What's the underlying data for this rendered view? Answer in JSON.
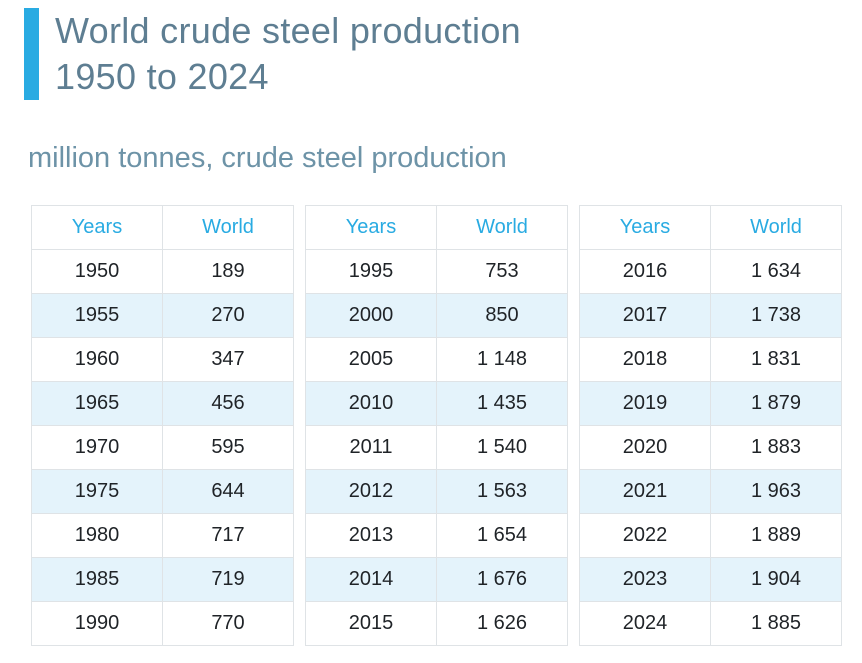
{
  "page": {
    "title_line1": "World crude steel production",
    "title_line2": "1950 to 2024",
    "subtitle": "million tonnes, crude steel production"
  },
  "colors": {
    "accent": "#29abe2",
    "title_text": "#5e7e92",
    "subtitle_text": "#6d93a7",
    "stripe": "#e4f3fb",
    "border": "#dfe3e6",
    "cell_text": "#1f2327"
  },
  "tables": [
    {
      "headers": [
        "Years",
        "World"
      ],
      "rows": [
        [
          "1950",
          "189"
        ],
        [
          "1955",
          "270"
        ],
        [
          "1960",
          "347"
        ],
        [
          "1965",
          "456"
        ],
        [
          "1970",
          "595"
        ],
        [
          "1975",
          "644"
        ],
        [
          "1980",
          "717"
        ],
        [
          "1985",
          "719"
        ],
        [
          "1990",
          "770"
        ]
      ]
    },
    {
      "headers": [
        "Years",
        "World"
      ],
      "rows": [
        [
          "1995",
          "753"
        ],
        [
          "2000",
          "850"
        ],
        [
          "2005",
          "1 148"
        ],
        [
          "2010",
          "1 435"
        ],
        [
          "2011",
          "1 540"
        ],
        [
          "2012",
          "1 563"
        ],
        [
          "2013",
          "1 654"
        ],
        [
          "2014",
          "1 676"
        ],
        [
          "2015",
          "1 626"
        ]
      ]
    },
    {
      "headers": [
        "Years",
        "World"
      ],
      "rows": [
        [
          "2016",
          "1 634"
        ],
        [
          "2017",
          "1 738"
        ],
        [
          "2018",
          "1 831"
        ],
        [
          "2019",
          "1 879"
        ],
        [
          "2020",
          "1 883"
        ],
        [
          "2021",
          "1 963"
        ],
        [
          "2022",
          "1 889"
        ],
        [
          "2023",
          "1 904"
        ],
        [
          "2024",
          "1 885"
        ]
      ]
    }
  ],
  "chart_data": {
    "type": "table",
    "title": "World crude steel production 1950 to 2024",
    "subtitle": "million tonnes, crude steel production",
    "columns": [
      "Years",
      "World"
    ],
    "unit": "million tonnes",
    "x": [
      1950,
      1955,
      1960,
      1965,
      1970,
      1975,
      1980,
      1985,
      1990,
      1995,
      2000,
      2005,
      2010,
      2011,
      2012,
      2013,
      2014,
      2015,
      2016,
      2017,
      2018,
      2019,
      2020,
      2021,
      2022,
      2023,
      2024
    ],
    "values": [
      189,
      270,
      347,
      456,
      595,
      644,
      717,
      719,
      770,
      753,
      850,
      1148,
      1435,
      1540,
      1563,
      1654,
      1676,
      1626,
      1634,
      1738,
      1831,
      1879,
      1883,
      1963,
      1889,
      1904,
      1885
    ]
  }
}
